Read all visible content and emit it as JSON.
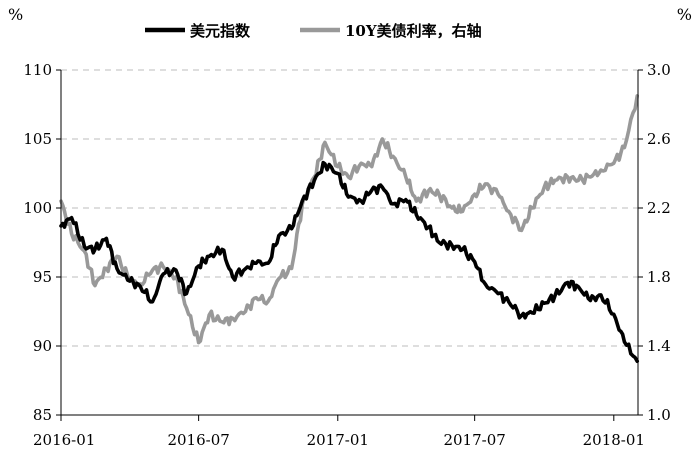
{
  "chart_data": {
    "type": "line",
    "title": "",
    "units": {
      "left": "%",
      "right": "%"
    },
    "legend": {
      "placement": "top",
      "entries": [
        "美元指数",
        "10Y美债利率，右轴"
      ]
    },
    "grid": {
      "horizontal": true,
      "style": "dashed",
      "vertical": false
    },
    "x_axis": {
      "ticks": [
        {
          "date": "2016-01-01",
          "label": "2016-01"
        },
        {
          "date": "2016-07-01",
          "label": "2016-07"
        },
        {
          "date": "2017-01-01",
          "label": "2017-01"
        },
        {
          "date": "2017-07-01",
          "label": "2017-07"
        },
        {
          "date": "2018-01-01",
          "label": "2018-01"
        }
      ],
      "range": [
        "2016-01-01",
        "2018-02-02"
      ]
    },
    "y_left": {
      "range": [
        85,
        110
      ],
      "ticks": [
        "85",
        "90",
        "95",
        "100",
        "105",
        "110"
      ]
    },
    "y_right": {
      "range": [
        1.0,
        3.0
      ],
      "ticks": [
        "1.0",
        "1.4",
        "1.8",
        "2.2",
        "2.6",
        "3.0"
      ]
    },
    "series": [
      {
        "name": "美元指数",
        "axis": "left",
        "color": "#000000",
        "x": [
          "2016-01-01",
          "2016-01-15",
          "2016-02-01",
          "2016-02-15",
          "2016-03-01",
          "2016-03-15",
          "2016-04-01",
          "2016-04-15",
          "2016-05-01",
          "2016-05-15",
          "2016-06-01",
          "2016-06-15",
          "2016-07-01",
          "2016-07-15",
          "2016-08-01",
          "2016-08-15",
          "2016-09-01",
          "2016-09-15",
          "2016-10-01",
          "2016-10-15",
          "2016-11-01",
          "2016-11-15",
          "2016-12-01",
          "2016-12-15",
          "2017-01-01",
          "2017-01-15",
          "2017-02-01",
          "2017-02-15",
          "2017-03-01",
          "2017-03-15",
          "2017-04-01",
          "2017-04-15",
          "2017-05-01",
          "2017-05-15",
          "2017-06-01",
          "2017-06-15",
          "2017-07-01",
          "2017-07-15",
          "2017-08-01",
          "2017-08-15",
          "2017-09-01",
          "2017-09-15",
          "2017-10-01",
          "2017-10-15",
          "2017-11-01",
          "2017-11-15",
          "2017-12-01",
          "2017-12-15",
          "2018-01-01",
          "2018-01-15",
          "2018-02-01"
        ],
        "values": [
          98.7,
          99.3,
          97.2,
          97.0,
          97.8,
          95.6,
          94.7,
          94.3,
          93.2,
          95.2,
          95.5,
          93.8,
          95.8,
          96.5,
          97.0,
          95.0,
          95.6,
          96.0,
          96.0,
          98.0,
          98.5,
          100.5,
          102.0,
          103.2,
          102.5,
          100.8,
          100.5,
          101.3,
          101.5,
          100.3,
          100.6,
          99.5,
          98.6,
          97.5,
          97.3,
          97.0,
          96.1,
          94.5,
          93.8,
          93.2,
          92.2,
          92.4,
          93.1,
          93.6,
          94.6,
          94.3,
          93.3,
          93.7,
          92.3,
          90.3,
          88.9
        ]
      },
      {
        "name": "10Y美债利率，右轴",
        "axis": "right",
        "color": "#999999",
        "x": [
          "2016-01-01",
          "2016-01-15",
          "2016-02-01",
          "2016-02-15",
          "2016-03-01",
          "2016-03-15",
          "2016-04-01",
          "2016-04-15",
          "2016-05-01",
          "2016-05-15",
          "2016-06-01",
          "2016-06-15",
          "2016-07-01",
          "2016-07-15",
          "2016-08-01",
          "2016-08-15",
          "2016-09-01",
          "2016-09-15",
          "2016-10-01",
          "2016-10-15",
          "2016-11-01",
          "2016-11-15",
          "2016-12-01",
          "2016-12-15",
          "2017-01-01",
          "2017-01-15",
          "2017-02-01",
          "2017-02-15",
          "2017-03-01",
          "2017-03-15",
          "2017-04-01",
          "2017-04-15",
          "2017-05-01",
          "2017-05-15",
          "2017-06-01",
          "2017-06-15",
          "2017-07-01",
          "2017-07-15",
          "2017-08-01",
          "2017-08-15",
          "2017-09-01",
          "2017-09-15",
          "2017-10-01",
          "2017-10-15",
          "2017-11-01",
          "2017-11-15",
          "2017-12-01",
          "2017-12-15",
          "2018-01-01",
          "2018-01-15",
          "2018-02-01"
        ],
        "values": [
          2.24,
          2.05,
          1.95,
          1.75,
          1.85,
          1.92,
          1.78,
          1.76,
          1.84,
          1.86,
          1.8,
          1.62,
          1.42,
          1.58,
          1.54,
          1.56,
          1.6,
          1.68,
          1.66,
          1.79,
          1.85,
          2.22,
          2.38,
          2.58,
          2.44,
          2.38,
          2.46,
          2.44,
          2.6,
          2.5,
          2.38,
          2.24,
          2.3,
          2.28,
          2.2,
          2.18,
          2.28,
          2.34,
          2.28,
          2.18,
          2.07,
          2.2,
          2.32,
          2.36,
          2.38,
          2.36,
          2.38,
          2.42,
          2.46,
          2.55,
          2.85
        ]
      }
    ]
  }
}
